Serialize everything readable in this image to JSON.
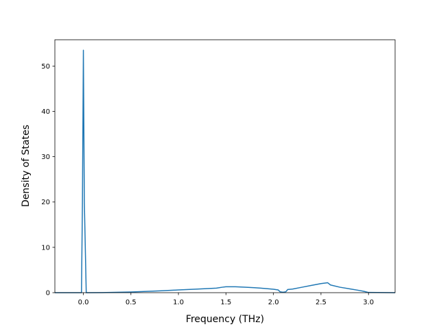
{
  "chart_data": {
    "type": "line",
    "title": "",
    "xlabel": "Frequency (THz)",
    "ylabel": "Density of States",
    "xlim": [
      -0.3,
      3.28
    ],
    "ylim": [
      0,
      55.8
    ],
    "xticks": [
      0.0,
      0.5,
      1.0,
      1.5,
      2.0,
      2.5,
      3.0
    ],
    "xtick_labels": [
      "0.0",
      "0.5",
      "1.0",
      "1.5",
      "2.0",
      "2.5",
      "3.0"
    ],
    "yticks": [
      0,
      10,
      20,
      30,
      40,
      50
    ],
    "ytick_labels": [
      "0",
      "10",
      "20",
      "30",
      "40",
      "50"
    ],
    "grid": false,
    "line_color": "#1f77b4",
    "series": [
      {
        "x": [
          -0.3,
          -0.02,
          -0.01,
          0.0,
          0.01,
          0.03,
          0.05,
          0.2,
          0.5,
          0.8,
          1.0,
          1.2,
          1.4,
          1.46,
          1.5,
          1.6,
          1.7,
          1.8,
          1.9,
          2.0,
          2.05,
          2.07,
          2.1,
          2.13,
          2.15,
          2.2,
          2.3,
          2.4,
          2.5,
          2.57,
          2.6,
          2.7,
          2.8,
          2.9,
          2.95,
          3.0,
          3.28
        ],
        "y": [
          0.0,
          0.0,
          20.0,
          53.5,
          20.0,
          0.0,
          0.0,
          0.02,
          0.15,
          0.4,
          0.6,
          0.8,
          1.0,
          1.2,
          1.3,
          1.3,
          1.2,
          1.1,
          0.95,
          0.75,
          0.6,
          0.2,
          0.1,
          0.2,
          0.7,
          0.8,
          1.2,
          1.6,
          2.0,
          2.2,
          1.7,
          1.2,
          0.85,
          0.5,
          0.3,
          0.05,
          0.0
        ]
      }
    ]
  }
}
